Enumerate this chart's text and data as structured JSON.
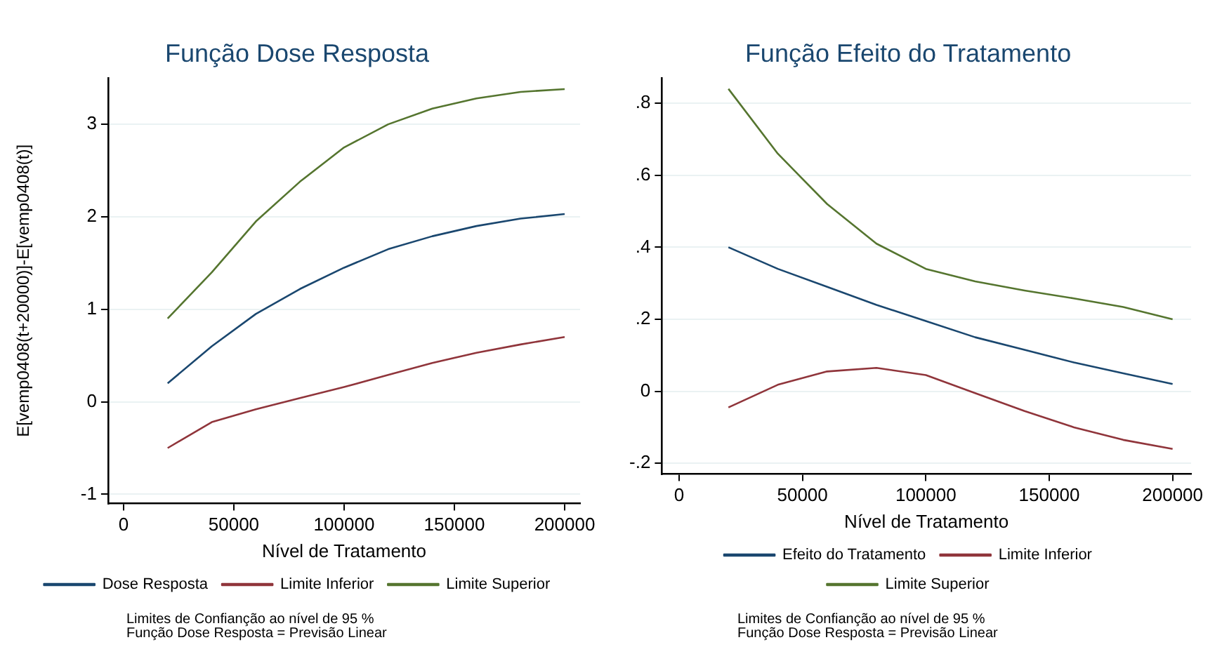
{
  "chart_data": [
    {
      "type": "line",
      "title": "Função Dose Resposta",
      "xlabel": "Nível de Tratamento",
      "ylabel": "E[vemp0408(t+20000)]-E[vemp0408(t)]",
      "x": [
        20000,
        40000,
        60000,
        80000,
        100000,
        120000,
        140000,
        160000,
        180000,
        200000
      ],
      "series": [
        {
          "name": "Dose Resposta",
          "color": "#1a476f",
          "values": [
            0.2,
            0.6,
            0.95,
            1.22,
            1.45,
            1.65,
            1.79,
            1.9,
            1.98,
            2.03
          ]
        },
        {
          "name": "Limite Inferior",
          "color": "#90353b",
          "values": [
            -0.5,
            -0.22,
            -0.08,
            0.04,
            0.16,
            0.29,
            0.42,
            0.53,
            0.62,
            0.7
          ]
        },
        {
          "name": "Limite Superior",
          "color": "#55752f",
          "values": [
            0.9,
            1.4,
            1.95,
            2.38,
            2.75,
            3.0,
            3.17,
            3.28,
            3.35,
            3.38
          ]
        }
      ],
      "xlim": [
        -7000,
        207000
      ],
      "xticks": [
        0,
        50000,
        100000,
        150000,
        200000
      ],
      "ylim": [
        -1.1,
        3.5
      ],
      "yticks": [
        -1,
        0,
        1,
        2,
        3
      ],
      "grid": "y",
      "legend": "bottom",
      "annotations": [
        "Limites de Confianção ao nível de 95 %",
        "Função Dose Resposta = Previsão Linear"
      ]
    },
    {
      "type": "line",
      "title": "Função Efeito do Tratamento",
      "xlabel": "Nível de Tratamento",
      "x": [
        20000,
        40000,
        60000,
        80000,
        100000,
        120000,
        140000,
        160000,
        180000,
        200000
      ],
      "series": [
        {
          "name": "Efeito do Tratamento",
          "color": "#1a476f",
          "values": [
            0.4,
            0.34,
            0.29,
            0.24,
            0.195,
            0.15,
            0.115,
            0.08,
            0.05,
            0.02
          ]
        },
        {
          "name": "Limite Inferior",
          "color": "#90353b",
          "values": [
            -0.045,
            0.018,
            0.055,
            0.065,
            0.045,
            -0.005,
            -0.055,
            -0.1,
            -0.135,
            -0.16
          ]
        },
        {
          "name": "Limite Superior",
          "color": "#55752f",
          "values": [
            0.84,
            0.66,
            0.52,
            0.41,
            0.34,
            0.305,
            0.28,
            0.258,
            0.234,
            0.2
          ]
        }
      ],
      "xlim": [
        -7000,
        207500
      ],
      "xticks": [
        0,
        50000,
        100000,
        150000,
        200000
      ],
      "ylim": [
        -0.23,
        0.87
      ],
      "yticks": [
        {
          "value": -0.2,
          "label": "-.2"
        },
        0,
        {
          "value": 0.2,
          "label": ".2"
        },
        {
          "value": 0.4,
          "label": ".4"
        },
        {
          "value": 0.6,
          "label": ".6"
        },
        {
          "value": 0.8,
          "label": ".8"
        }
      ],
      "grid": "y",
      "legend": "bottom",
      "annotations": [
        "Limites de Confianção ao nível de 95 %",
        "Função Dose Resposta = Previsão Linear"
      ]
    }
  ]
}
